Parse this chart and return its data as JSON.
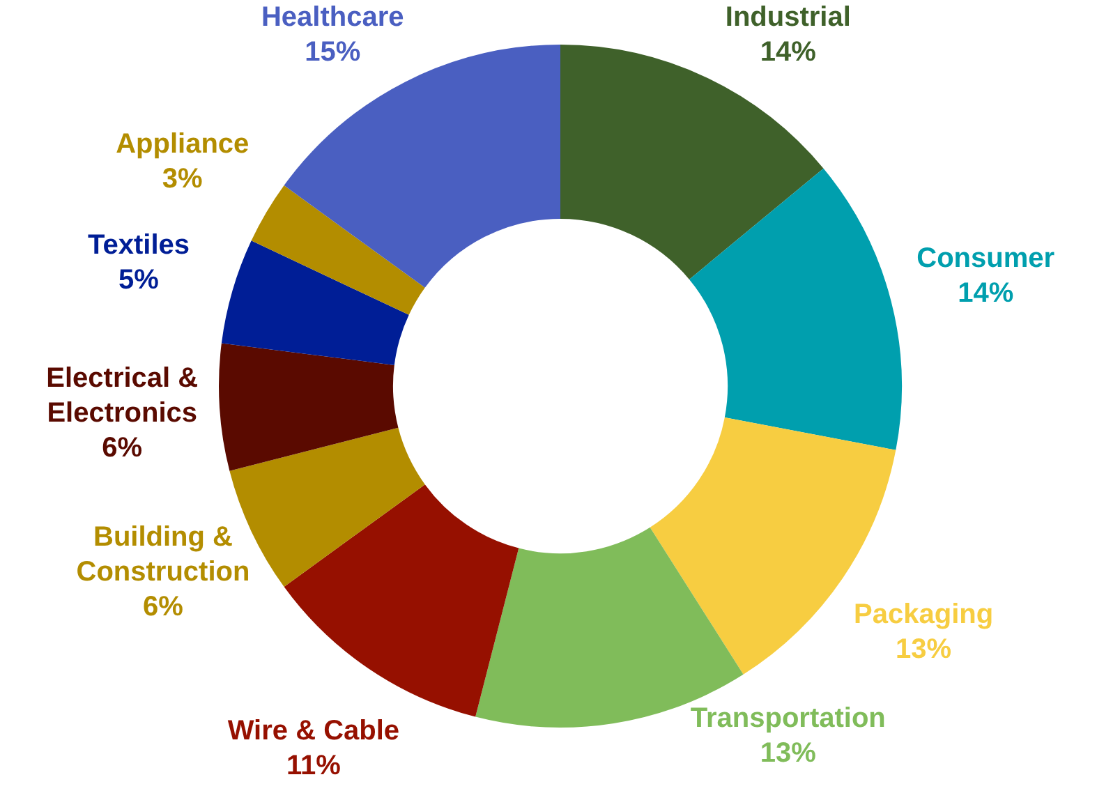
{
  "chart_data": {
    "type": "donut",
    "categories": [
      "Industrial",
      "Consumer",
      "Packaging",
      "Transportation",
      "Wire & Cable",
      "Building & Construction",
      "Electrical & Electronics",
      "Textiles",
      "Appliance",
      "Healthcare"
    ],
    "values": [
      14,
      14,
      13,
      13,
      11,
      6,
      6,
      5,
      3,
      15
    ],
    "value_labels": [
      "14%",
      "14%",
      "13%",
      "13%",
      "11%",
      "6%",
      "6%",
      "5%",
      "3%",
      "15%"
    ],
    "colors": [
      "#3f612a",
      "#009fae",
      "#f7cd41",
      "#80bc5a",
      "#961000",
      "#b38d00",
      "#5a0a00",
      "#001e96",
      "#b38d00",
      "#4a5fc1"
    ],
    "legend": false
  }
}
